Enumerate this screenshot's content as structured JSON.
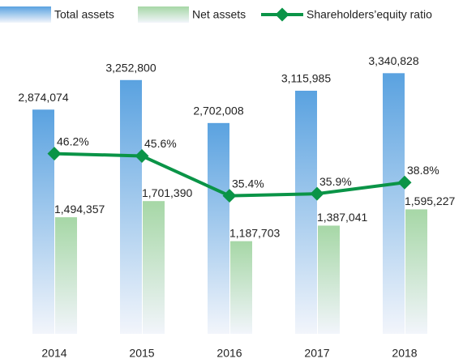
{
  "chart_data": {
    "type": "bar-line",
    "categories": [
      "2014",
      "2015",
      "2016",
      "2017",
      "2018"
    ],
    "series": [
      {
        "name": "Total assets",
        "color": "#5aa2e0",
        "type": "bar",
        "values": [
          2874074,
          3252800,
          2702008,
          3115985,
          3340828
        ],
        "value_labels": [
          "2,874,074",
          "3,252,800",
          "2,702,008",
          "3,115,985",
          "3,340,828"
        ]
      },
      {
        "name": "Net assets",
        "color": "#a6d7a6",
        "type": "bar",
        "values": [
          1494357,
          1701390,
          1187703,
          1387041,
          1595227
        ],
        "value_labels": [
          "1,494,357",
          "1,701,390",
          "1,187,703",
          "1,387,041",
          "1,595,227"
        ]
      },
      {
        "name": "Shareholders’equity ratio",
        "color": "#0a9447",
        "type": "line",
        "axis": "y2",
        "values": [
          46.2,
          45.6,
          35.4,
          35.9,
          38.8
        ],
        "value_labels": [
          "46.2%",
          "45.6%",
          "35.4%",
          "35.9%",
          "38.8%"
        ]
      }
    ],
    "ylim": [
      0,
      3500000
    ],
    "y2lim": [
      0,
      70
    ],
    "legend": "top"
  }
}
